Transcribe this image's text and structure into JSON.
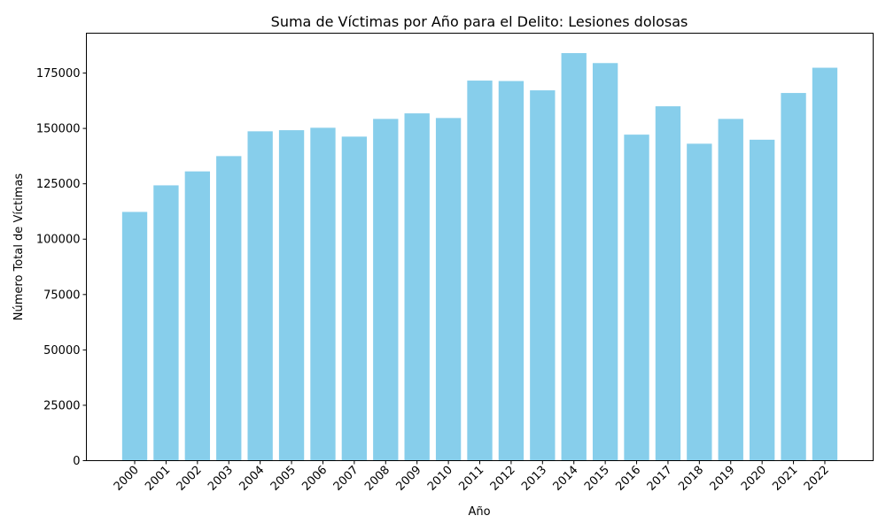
{
  "chart_data": {
    "type": "bar",
    "title": "Suma de Víctimas por Año para el Delito: Lesiones dolosas",
    "xlabel": "Año",
    "ylabel": "Número Total de Víctimas",
    "categories": [
      "2000",
      "2001",
      "2002",
      "2003",
      "2004",
      "2005",
      "2006",
      "2007",
      "2008",
      "2009",
      "2010",
      "2011",
      "2012",
      "2013",
      "2014",
      "2015",
      "2016",
      "2017",
      "2018",
      "2019",
      "2020",
      "2021",
      "2022"
    ],
    "values": [
      112300,
      124300,
      130600,
      137500,
      148700,
      149200,
      150300,
      146300,
      154300,
      156800,
      154700,
      171600,
      171400,
      167200,
      184000,
      179500,
      147200,
      160000,
      143100,
      154300,
      144900,
      166000,
      177400
    ],
    "ylim": [
      0,
      193000
    ],
    "yticks": [
      0,
      25000,
      50000,
      75000,
      100000,
      125000,
      150000,
      175000
    ],
    "bar_color": "#87ceeb",
    "grid": false,
    "legend": "none"
  }
}
